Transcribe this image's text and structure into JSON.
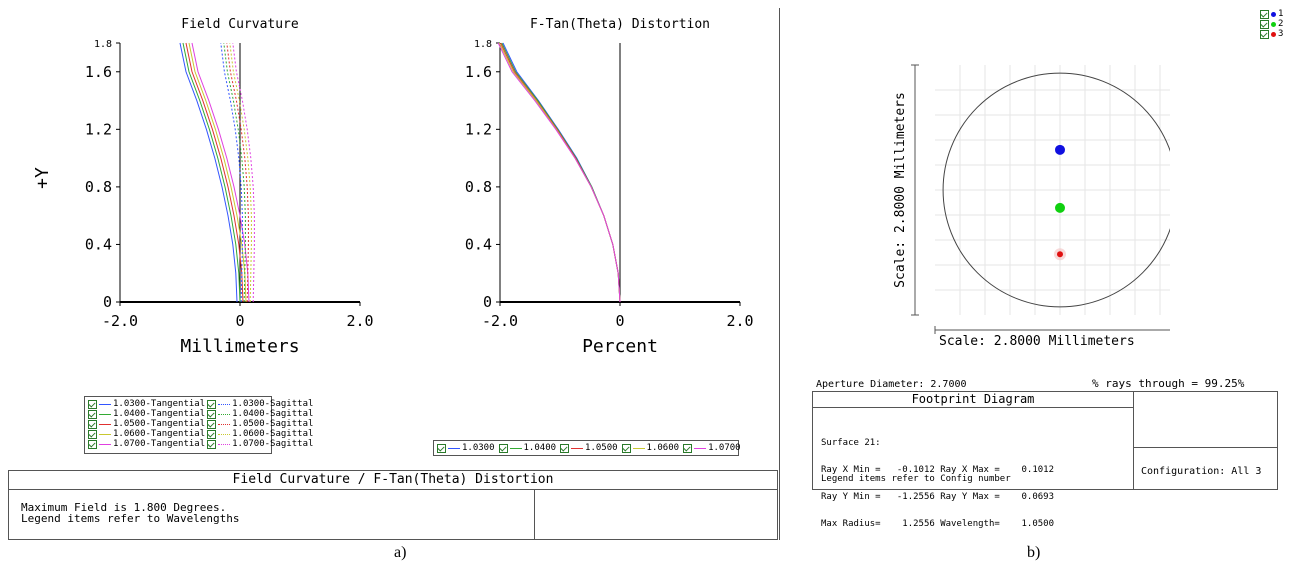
{
  "chart_data": [
    {
      "type": "line",
      "title": "Field Curvature",
      "xlabel": "Millimeters",
      "ylabel": "+Y",
      "xlim": [
        -2.0,
        2.0
      ],
      "ylim": [
        0,
        1.8
      ],
      "x_ticks": [
        "-2.0",
        "0",
        "2.0"
      ],
      "y_ticks": [
        "0",
        "0.4",
        "0.8",
        "1.2",
        "1.6",
        "1.8"
      ],
      "y": [
        0,
        0.2,
        0.4,
        0.6,
        0.8,
        1.0,
        1.2,
        1.4,
        1.6,
        1.8
      ],
      "series": [
        {
          "name": "1.0300-Tangential",
          "color": "#3355ff",
          "dash": false,
          "x": [
            -0.05,
            -0.07,
            -0.12,
            -0.2,
            -0.3,
            -0.42,
            -0.56,
            -0.72,
            -0.9,
            -1.0
          ]
        },
        {
          "name": "1.0400-Tangential",
          "color": "#33aa33",
          "dash": false,
          "x": [
            0.0,
            -0.02,
            -0.07,
            -0.15,
            -0.25,
            -0.37,
            -0.51,
            -0.67,
            -0.85,
            -0.95
          ]
        },
        {
          "name": "1.0500-Tangential",
          "color": "#e03030",
          "dash": false,
          "x": [
            0.05,
            0.03,
            -0.02,
            -0.1,
            -0.2,
            -0.32,
            -0.46,
            -0.62,
            -0.8,
            -0.9
          ]
        },
        {
          "name": "1.0600-Tangential",
          "color": "#c8c830",
          "dash": false,
          "x": [
            0.1,
            0.08,
            0.03,
            -0.05,
            -0.15,
            -0.27,
            -0.41,
            -0.57,
            -0.75,
            -0.85
          ]
        },
        {
          "name": "1.0700-Tangential",
          "color": "#e040e0",
          "dash": false,
          "x": [
            0.15,
            0.13,
            0.08,
            0.0,
            -0.1,
            -0.22,
            -0.36,
            -0.52,
            -0.7,
            -0.8
          ]
        },
        {
          "name": "1.0300-Sagittal",
          "color": "#3355ff",
          "dash": true,
          "x": [
            0.02,
            0.03,
            0.04,
            0.04,
            0.02,
            -0.02,
            -0.08,
            -0.16,
            -0.26,
            -0.32
          ]
        },
        {
          "name": "1.0400-Sagittal",
          "color": "#33aa33",
          "dash": true,
          "x": [
            0.07,
            0.08,
            0.09,
            0.09,
            0.07,
            0.03,
            -0.03,
            -0.11,
            -0.21,
            -0.27
          ]
        },
        {
          "name": "1.0500-Sagittal",
          "color": "#e03030",
          "dash": true,
          "x": [
            0.12,
            0.13,
            0.14,
            0.14,
            0.12,
            0.08,
            0.02,
            -0.06,
            -0.16,
            -0.22
          ]
        },
        {
          "name": "1.0600-Sagittal",
          "color": "#c8c830",
          "dash": true,
          "x": [
            0.17,
            0.18,
            0.19,
            0.19,
            0.17,
            0.13,
            0.07,
            -0.01,
            -0.11,
            -0.17
          ]
        },
        {
          "name": "1.0700-Sagittal",
          "color": "#e040e0",
          "dash": true,
          "x": [
            0.22,
            0.23,
            0.24,
            0.24,
            0.22,
            0.18,
            0.12,
            0.04,
            -0.06,
            -0.12
          ]
        }
      ],
      "legend": [
        "1.0300-Tangential",
        "1.0300-Sagittal",
        "1.0400-Tangential",
        "1.0400-Sagittal",
        "1.0500-Tangential",
        "1.0500-Sagittal",
        "1.0600-Tangential",
        "1.0600-Sagittal",
        "1.0700-Tangential",
        "1.0700-Sagittal"
      ]
    },
    {
      "type": "line",
      "title": "F-Tan(Theta) Distortion",
      "xlabel": "Percent",
      "ylabel": "",
      "xlim": [
        -2.0,
        2.0
      ],
      "ylim": [
        0,
        1.8
      ],
      "x_ticks": [
        "-2.0",
        "0",
        "2.0"
      ],
      "y_ticks": [
        "0",
        "0.4",
        "0.8",
        "1.2",
        "1.6",
        "1.8"
      ],
      "y": [
        0,
        0.2,
        0.4,
        0.6,
        0.8,
        1.0,
        1.2,
        1.4,
        1.6,
        1.8
      ],
      "series": [
        {
          "name": "1.0300",
          "color": "#3355ff",
          "x": [
            0,
            -0.03,
            -0.12,
            -0.27,
            -0.47,
            -0.72,
            -1.03,
            -1.36,
            -1.72,
            -1.95
          ]
        },
        {
          "name": "1.0400",
          "color": "#33aa33",
          "x": [
            0,
            -0.03,
            -0.12,
            -0.27,
            -0.47,
            -0.73,
            -1.04,
            -1.37,
            -1.74,
            -1.97
          ]
        },
        {
          "name": "1.0500",
          "color": "#e03030",
          "x": [
            0,
            -0.03,
            -0.12,
            -0.27,
            -0.48,
            -0.74,
            -1.05,
            -1.39,
            -1.76,
            -1.99
          ]
        },
        {
          "name": "1.0600",
          "color": "#c8c830",
          "x": [
            0,
            -0.03,
            -0.12,
            -0.27,
            -0.48,
            -0.75,
            -1.06,
            -1.4,
            -1.78,
            -2.01
          ]
        },
        {
          "name": "1.0700",
          "color": "#e040e0",
          "x": [
            0,
            -0.03,
            -0.12,
            -0.27,
            -0.48,
            -0.75,
            -1.07,
            -1.42,
            -1.8,
            -2.03
          ]
        }
      ],
      "legend": [
        "1.0300",
        "1.0400",
        "1.0500",
        "1.0600",
        "1.0700"
      ]
    },
    {
      "type": "scatter",
      "title": "Footprint Diagram",
      "xlabel": "Scale: 2.8000 Millimeters",
      "ylabel": "Scale: 2.8000 Millimeters",
      "xlim": [
        -1.4,
        1.4
      ],
      "ylim": [
        -1.4,
        1.4
      ],
      "aperture_radius": 1.35,
      "series": [
        {
          "name": "1",
          "color": "#1010e0",
          "x": 0.0,
          "y": 0.45
        },
        {
          "name": "2",
          "color": "#10d010",
          "x": 0.0,
          "y": -0.2
        },
        {
          "name": "3",
          "color": "#e01010",
          "x": 0.0,
          "y": -0.72
        }
      ],
      "legend": [
        "1",
        "2",
        "3"
      ]
    }
  ],
  "fc_panel": {
    "title": "Field Curvature / F-Tan(Theta) Distortion",
    "line1": "Maximum Field is 1.800 Degrees.",
    "line2": "Legend items refer to Wavelengths"
  },
  "fp_panel": {
    "aperture": "Aperture Diameter: 2.7000",
    "rays": "% rays through = 99.25%",
    "title": "Footprint Diagram",
    "surface": "Surface 21:",
    "row1": "Ray X Min =   -0.1012 Ray X Max =    0.1012",
    "row2": "Ray Y Min =   -1.2556 Ray Y Max =    0.0693",
    "row3": "Max Radius=    1.2556 Wavelength=    1.0500",
    "legend_note": "Legend items refer to Config number",
    "config": "Configuration: All 3"
  },
  "captions": {
    "a": "a)",
    "b": "b)"
  }
}
